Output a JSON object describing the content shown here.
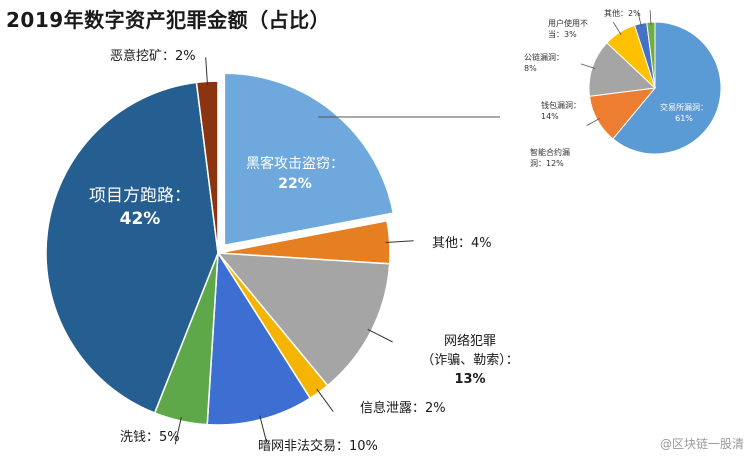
{
  "title": "2019年数字资产犯罪金额（占比）",
  "watermark": "@区块链一股清",
  "chart_data": [
    {
      "type": "pie",
      "slices": [
        {
          "label": "黑客攻击盗窃",
          "value": 22,
          "pct": "22%",
          "color": "#6fa8dc"
        },
        {
          "label": "其他",
          "value": 4,
          "pct": "4%",
          "color": "#e67e22"
        },
        {
          "label": "网络犯罪（诈骗、勒索）",
          "value": 13,
          "pct": "13%",
          "color": "#a5a5a5"
        },
        {
          "label": "信息泄露",
          "value": 2,
          "pct": "2%",
          "color": "#f4b400"
        },
        {
          "label": "暗网非法交易",
          "value": 10,
          "pct": "10%",
          "color": "#3c6fd1"
        },
        {
          "label": "洗钱",
          "value": 5,
          "pct": "5%",
          "color": "#5ea84a"
        },
        {
          "label": "项目方跑路",
          "value": 42,
          "pct": "42%",
          "color": "#255e91"
        },
        {
          "label": "恶意挖矿",
          "value": 2,
          "pct": "2%",
          "color": "#8b3412"
        }
      ]
    },
    {
      "type": "pie",
      "slices": [
        {
          "label": "交易所漏洞",
          "value": 61,
          "pct": "61%",
          "color": "#5b9bd5"
        },
        {
          "label": "智能合约漏洞",
          "value": 12,
          "pct": "12%",
          "color": "#ed7d31"
        },
        {
          "label": "钱包漏洞",
          "value": 14,
          "pct": "14%",
          "color": "#a5a5a5"
        },
        {
          "label": "公链漏洞",
          "value": 8,
          "pct": "8%",
          "color": "#ffc000"
        },
        {
          "label": "用户使用不当",
          "value": 3,
          "pct": "3%",
          "color": "#4472c4"
        },
        {
          "label": "其他",
          "value": 2,
          "pct": "2%",
          "color": "#70ad47"
        }
      ]
    }
  ]
}
